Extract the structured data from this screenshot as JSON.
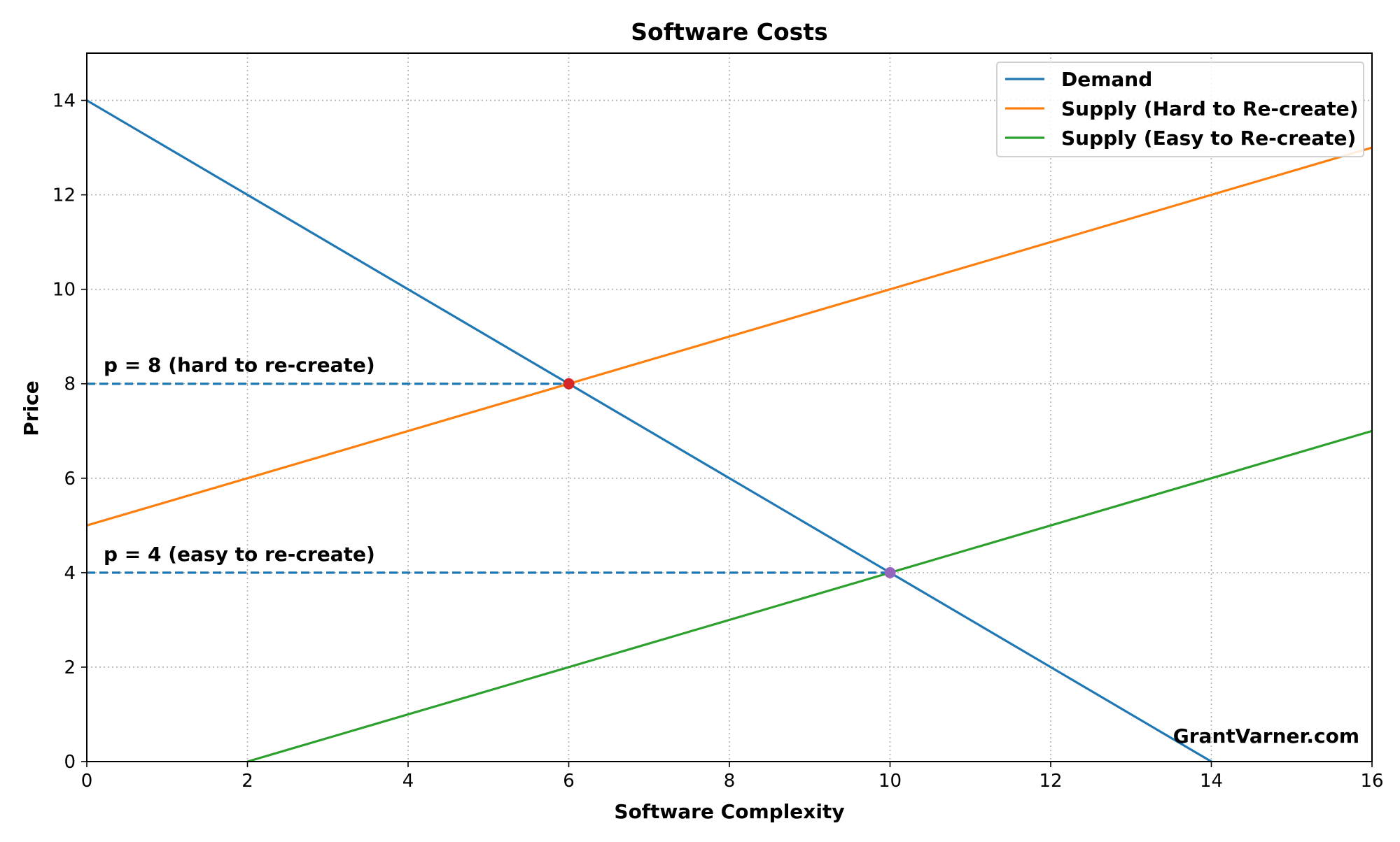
{
  "chart_data": {
    "type": "line",
    "title": "Software Costs",
    "xlabel": "Software Complexity",
    "ylabel": "Price",
    "xlim": [
      0,
      16
    ],
    "ylim": [
      0,
      15
    ],
    "xticks": [
      0,
      2,
      4,
      6,
      8,
      10,
      12,
      14,
      16
    ],
    "yticks": [
      0,
      2,
      4,
      6,
      8,
      10,
      12,
      14
    ],
    "grid": true,
    "legend_position": "top-right",
    "series": [
      {
        "name": "Demand",
        "color": "#1f77b4",
        "x": [
          0,
          14
        ],
        "y": [
          14,
          0
        ]
      },
      {
        "name": "Supply (Hard to Re-create)",
        "color": "#ff7f0e",
        "x": [
          0,
          16
        ],
        "y": [
          5,
          13
        ]
      },
      {
        "name": "Supply (Easy to Re-create)",
        "color": "#2ca02c",
        "x": [
          2,
          16
        ],
        "y": [
          0,
          7
        ]
      }
    ],
    "price_lines": [
      {
        "label": "p = 8 (hard to re-create)",
        "price": 8,
        "x_end": 6,
        "color": "#1f77b4"
      },
      {
        "label": "p = 4 (easy to re-create)",
        "price": 4,
        "x_end": 10,
        "color": "#1f77b4"
      }
    ],
    "equilibrium_points": [
      {
        "x": 6,
        "y": 8,
        "color": "#d62728"
      },
      {
        "x": 10,
        "y": 4,
        "color": "#9467bd"
      }
    ],
    "watermark": "GrantVarner.com"
  }
}
